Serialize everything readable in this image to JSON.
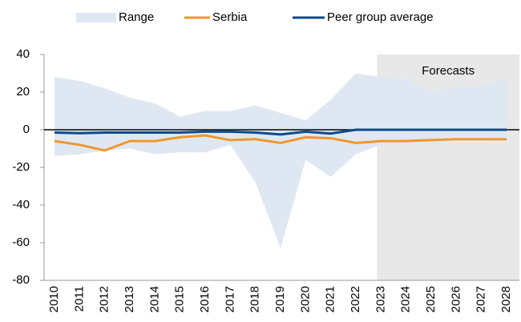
{
  "chart_data": {
    "type": "line",
    "categories": [
      "2010",
      "2011",
      "2012",
      "2013",
      "2014",
      "2015",
      "2016",
      "2017",
      "2018",
      "2019",
      "2020",
      "2021",
      "2022",
      "2023",
      "2024",
      "2025",
      "2026",
      "2027",
      "2028"
    ],
    "series": [
      {
        "name": "Range",
        "color": "#dfe8f2",
        "upper": [
          28,
          26,
          22,
          17,
          14,
          7,
          10,
          10,
          13,
          9,
          5,
          16,
          30,
          28,
          27,
          20,
          23,
          23,
          28
        ],
        "lower": [
          -14,
          -13,
          -11,
          -10,
          -13,
          -12,
          -12,
          -8,
          -28,
          -63,
          -16,
          -25,
          -13,
          -8,
          -7,
          -6,
          -6,
          -6,
          -5
        ]
      },
      {
        "name": "Serbia",
        "color": "#f0962e",
        "values": [
          -6,
          -8,
          -11,
          -6,
          -6,
          -4,
          -3,
          -5.5,
          -5,
          -7,
          -4,
          -4.5,
          -7,
          -6,
          -6,
          -5.5,
          -5,
          -5,
          -5
        ]
      },
      {
        "name": "Peer group average",
        "color": "#0d4a8c",
        "values": [
          -1.5,
          -1.8,
          -1.5,
          -1.5,
          -1.5,
          -1.5,
          -1,
          -1,
          -1.5,
          -2.5,
          -1,
          -2,
          0,
          0,
          0,
          0,
          0,
          0,
          0
        ]
      }
    ],
    "ylim": [
      -80,
      40
    ],
    "yticks": [
      -80,
      -60,
      -40,
      -20,
      0,
      20,
      40
    ],
    "forecast_start": "2023",
    "annotation": "Forecasts"
  }
}
